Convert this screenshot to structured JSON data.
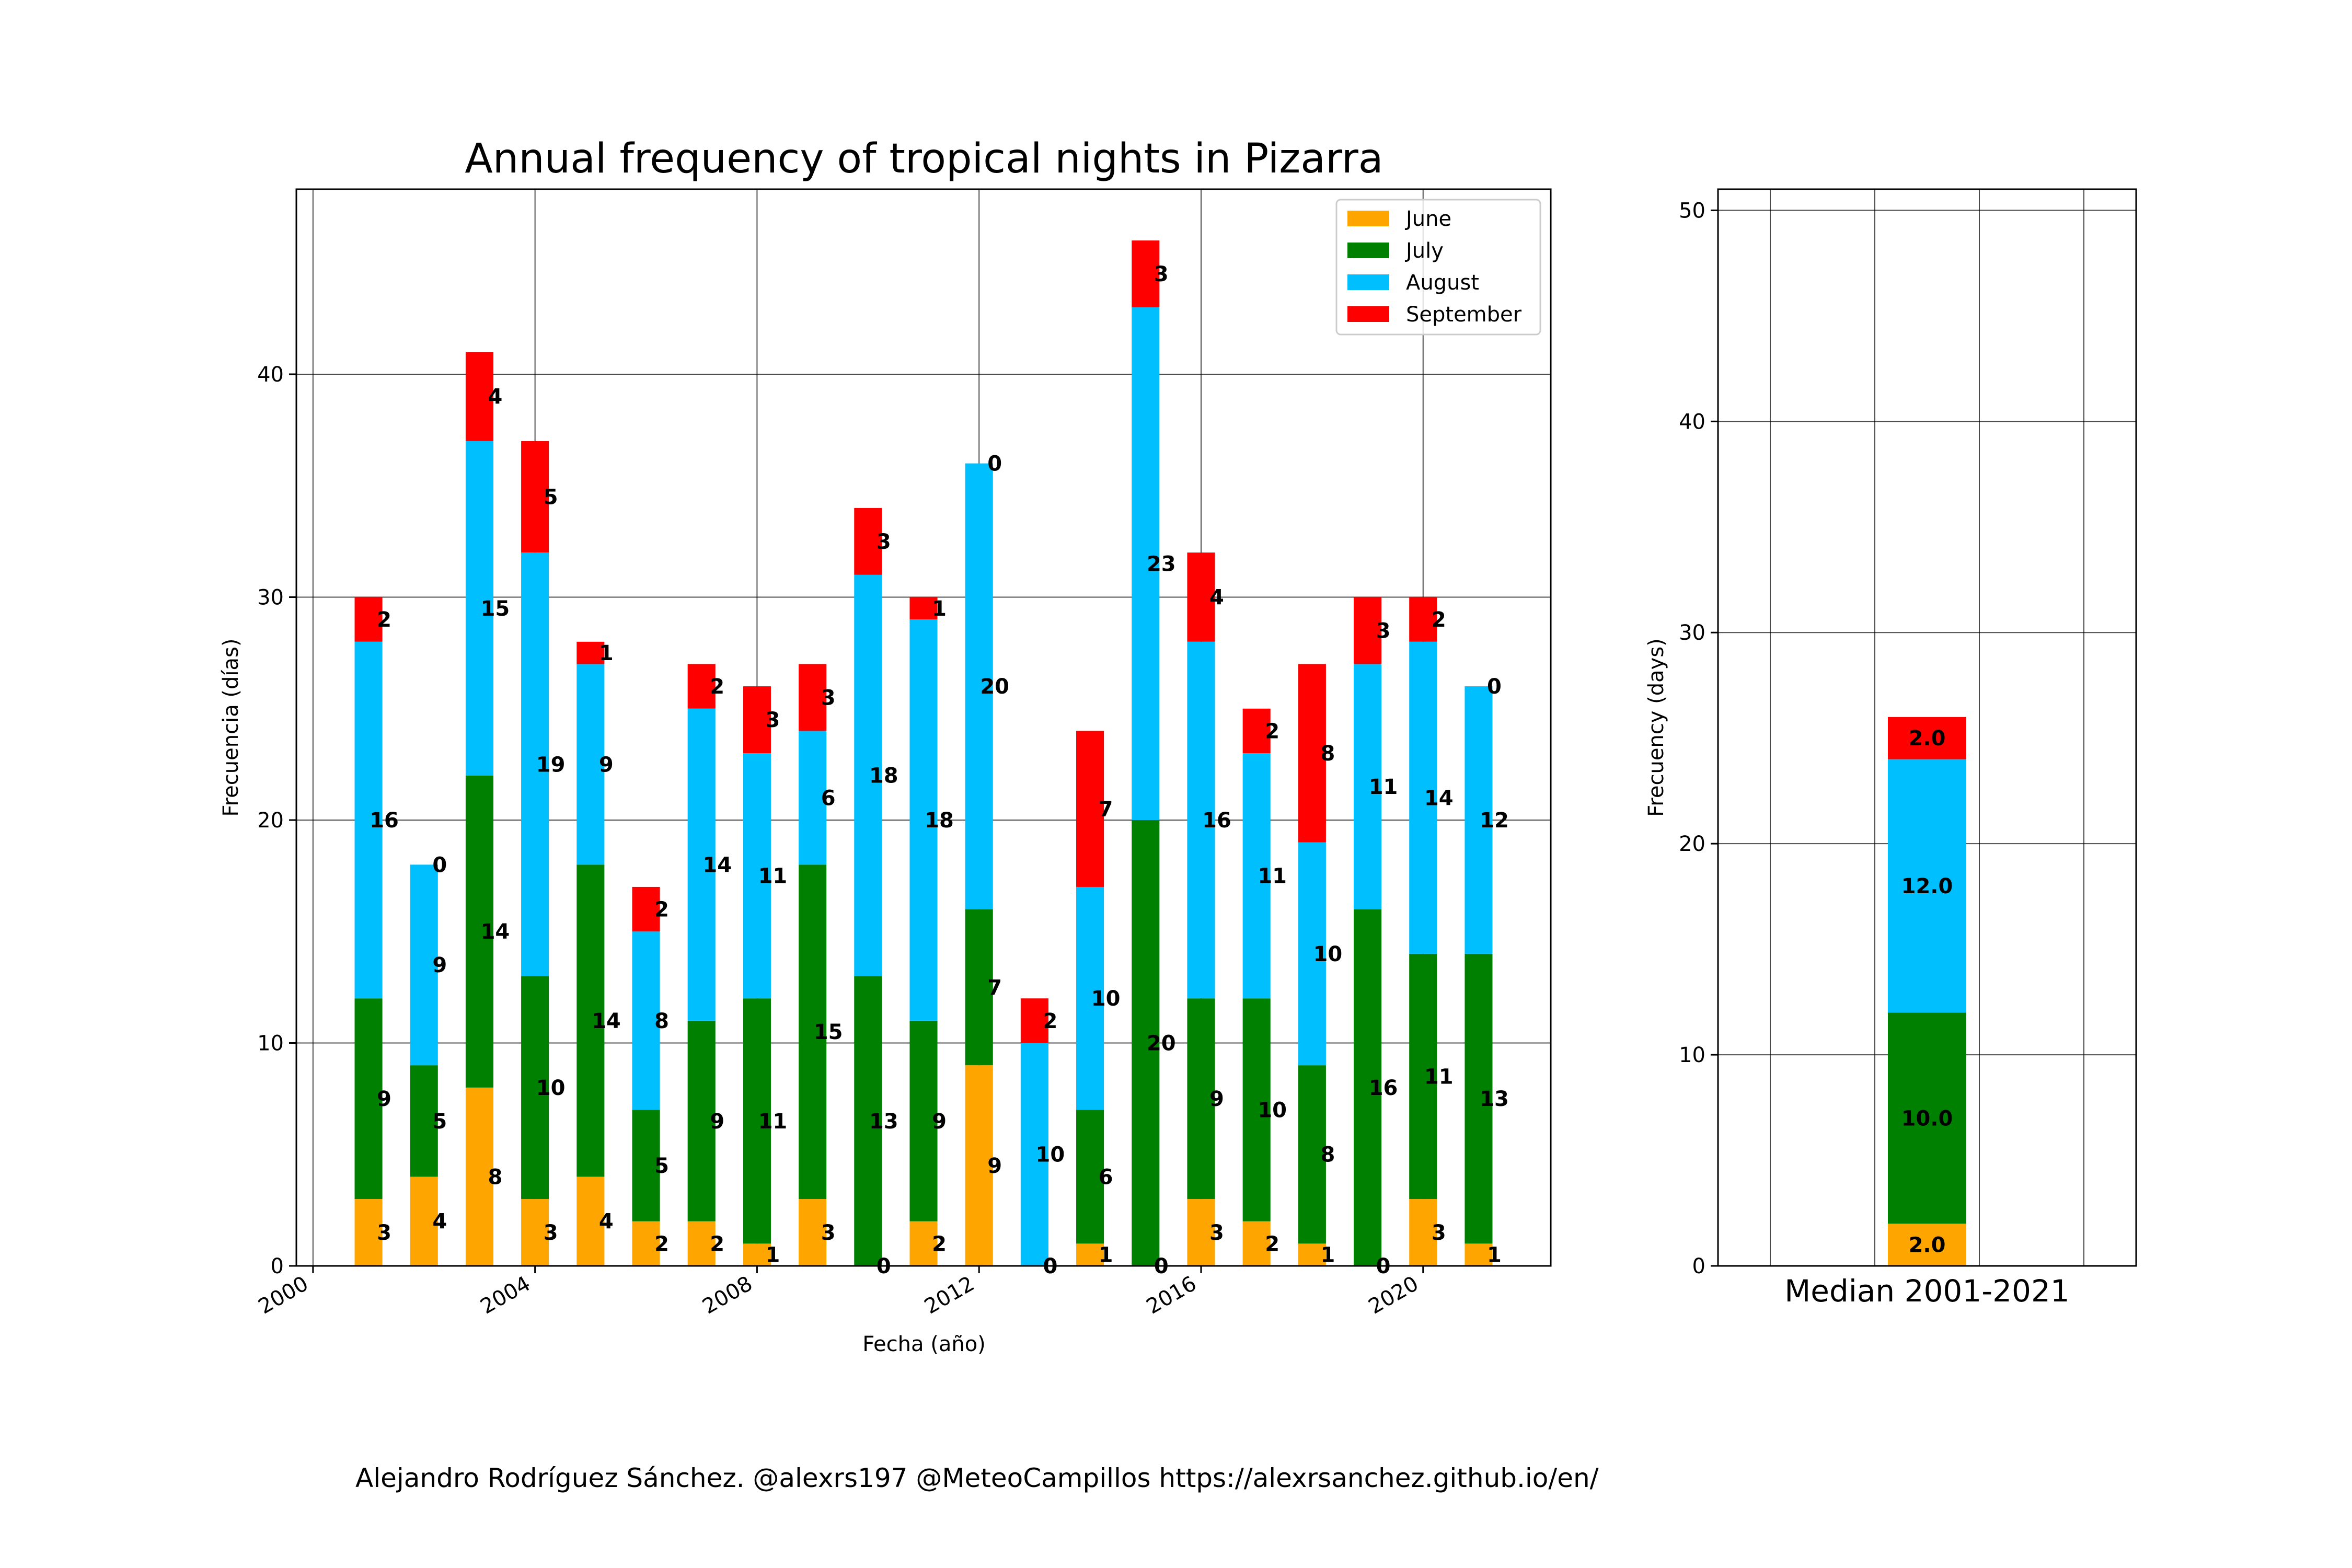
{
  "colors": {
    "June": "#FFA500",
    "July": "#008000",
    "August": "#00BFFF",
    "September": "#FF0000"
  },
  "chart_data": [
    {
      "type": "bar",
      "stacked": true,
      "title": "Annual frequency of tropical nights in Pizarra",
      "xlabel": "Fecha (año)",
      "ylabel": "Frecuencia (días)",
      "x": [
        2001,
        2002,
        2003,
        2004,
        2005,
        2006,
        2007,
        2008,
        2009,
        2010,
        2011,
        2012,
        2013,
        2014,
        2015,
        2016,
        2017,
        2018,
        2019,
        2020,
        2021
      ],
      "xlim": [
        1999.7,
        2022.3
      ],
      "ylim": [
        0,
        48.3
      ],
      "xticks": [
        2000,
        2004,
        2008,
        2012,
        2016,
        2020
      ],
      "yticks": [
        0,
        10,
        20,
        30,
        40
      ],
      "grid": true,
      "legend": "upper right",
      "series": [
        {
          "name": "June",
          "values": [
            3,
            4,
            8,
            3,
            4,
            2,
            2,
            1,
            3,
            0,
            2,
            9,
            0,
            1,
            0,
            3,
            2,
            1,
            0,
            3,
            1
          ]
        },
        {
          "name": "July",
          "values": [
            9,
            5,
            14,
            10,
            14,
            5,
            9,
            11,
            15,
            13,
            9,
            7,
            0,
            6,
            20,
            9,
            10,
            8,
            16,
            11,
            13
          ]
        },
        {
          "name": "August",
          "values": [
            16,
            9,
            15,
            19,
            9,
            8,
            14,
            11,
            6,
            18,
            18,
            20,
            10,
            10,
            23,
            16,
            11,
            10,
            11,
            14,
            12
          ]
        },
        {
          "name": "September",
          "values": [
            2,
            0,
            4,
            5,
            1,
            2,
            2,
            3,
            3,
            3,
            1,
            0,
            2,
            7,
            3,
            4,
            2,
            8,
            3,
            2,
            0
          ]
        }
      ]
    },
    {
      "type": "bar",
      "stacked": true,
      "xlabel": "Median 2001-2021",
      "ylabel": "Frecuency (days)",
      "ylim": [
        0,
        51
      ],
      "yticks": [
        0,
        10,
        20,
        30,
        40,
        50
      ],
      "grid": true,
      "series": [
        {
          "name": "June",
          "value": 2.0,
          "label": "2.0"
        },
        {
          "name": "July",
          "value": 10.0,
          "label": "10.0"
        },
        {
          "name": "August",
          "value": 12.0,
          "label": "12.0"
        },
        {
          "name": "September",
          "value": 2.0,
          "label": "2.0"
        }
      ]
    }
  ],
  "footer": "Alejandro Rodríguez Sánchez. @alexrs197 @MeteoCampillos   https://alexrsanchez.github.io/en/"
}
